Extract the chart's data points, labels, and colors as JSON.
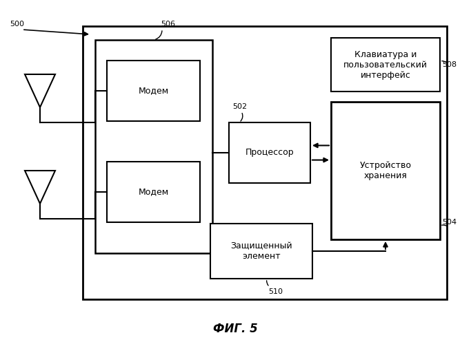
{
  "fig_width": 6.83,
  "fig_height": 5.0,
  "dpi": 100,
  "bg_color": "#ffffff",
  "caption": "ФИГ. 5",
  "caption_fontsize": 12,
  "label_500": "500",
  "label_506": "506",
  "label_502": "502",
  "label_504": "504",
  "label_508": "508",
  "label_510": "510",
  "text_modem1": "Модем",
  "text_modem2": "Модем",
  "text_processor": "Процессор",
  "text_storage": "Устройство\nхранения",
  "text_keyboard": "Клавиатура и\nпользовательский\nинтерфейс",
  "text_secure": "Защищенный\nэлемент",
  "line_color": "#000000",
  "font_size": 9,
  "small_font_size": 8
}
